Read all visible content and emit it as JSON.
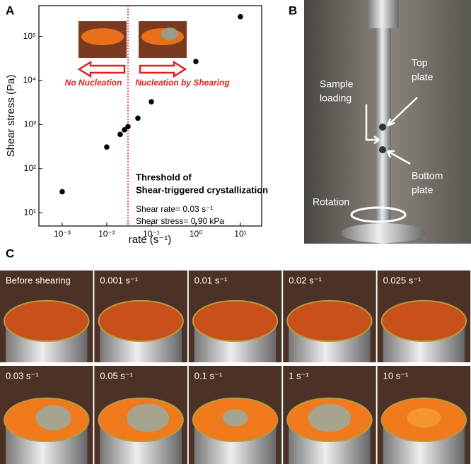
{
  "chart_data": {
    "type": "scatter",
    "panel_label": "A",
    "xlabel": "rate (s⁻¹)",
    "ylabel": "Shear stress (Pa)",
    "x": [
      0.001,
      0.01,
      0.02,
      0.025,
      0.03,
      0.05,
      0.1,
      1,
      10
    ],
    "values": [
      30,
      310,
      600,
      760,
      900,
      1400,
      3300,
      27000,
      280000
    ],
    "color": "#000000",
    "xlog": true,
    "ylog": true,
    "xlim": [
      0.0003,
      30
    ],
    "ylim": [
      5,
      500000
    ],
    "xticks": [
      {
        "value": 0.001,
        "label": "10⁻³"
      },
      {
        "value": 0.01,
        "label": "10⁻²"
      },
      {
        "value": 0.1,
        "label": "10⁻¹"
      },
      {
        "value": 1,
        "label": "10⁰"
      },
      {
        "value": 10,
        "label": "10¹"
      }
    ],
    "yticks": [
      {
        "value": 10,
        "label": "10¹"
      },
      {
        "value": 100,
        "label": "10²"
      },
      {
        "value": 1000,
        "label": "10³"
      },
      {
        "value": 10000,
        "label": "10⁴"
      },
      {
        "value": 100000,
        "label": "10⁵"
      }
    ],
    "threshold_x": 0.03,
    "threshold_color": "#e02020",
    "left_arrow_text": "No Nucleation",
    "right_arrow_text": "Nucleation by Shearing",
    "threshold_title": [
      "Threshold of",
      "Shear-triggered crystallization"
    ],
    "threshold_notes": [
      "Shear rate= 0.03 s⁻¹",
      "Shear stress= 0.90 kPa"
    ]
  },
  "panel_b": {
    "label": "B",
    "sample": [
      "Sample",
      "loading"
    ],
    "top": [
      "Top",
      "plate"
    ],
    "bottom": [
      "Bottom",
      "plate"
    ],
    "rotation": "Rotation"
  },
  "panel_c": {
    "label": "C",
    "rows": [
      [
        "Before shearing",
        "0.001 s⁻¹",
        "0.01 s⁻¹",
        "0.02 s⁻¹",
        "0.025 s⁻¹"
      ],
      [
        "0.03 s⁻¹",
        "0.05 s⁻¹",
        "0.1 s⁻¹",
        "1 s⁻¹",
        "10 s⁻¹"
      ]
    ]
  }
}
